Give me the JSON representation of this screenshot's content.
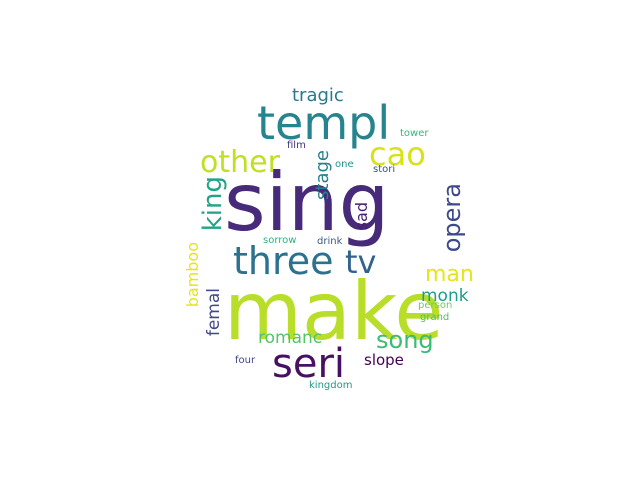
{
  "word_cloud": {
    "words": [
      {
        "text": "sing",
        "color": "#472a7a"
      },
      {
        "text": "make",
        "color": "#b8de29"
      },
      {
        "text": "templ",
        "color": "#25848e"
      },
      {
        "text": "three",
        "color": "#2c728e"
      },
      {
        "text": "seri",
        "color": "#471063"
      },
      {
        "text": "cao",
        "color": "#d8e219"
      },
      {
        "text": "other",
        "color": "#c2df23"
      },
      {
        "text": "tv",
        "color": "#33638d"
      },
      {
        "text": "song",
        "color": "#3bbb75"
      },
      {
        "text": "king",
        "color": "#20a386"
      },
      {
        "text": "opera",
        "color": "#3e4989"
      },
      {
        "text": "man",
        "color": "#e7e419"
      },
      {
        "text": "tragic",
        "color": "#2a788e"
      },
      {
        "text": "monk",
        "color": "#1e9c89"
      },
      {
        "text": "stage",
        "color": "#27808e"
      },
      {
        "text": "romanc",
        "color": "#52c569"
      },
      {
        "text": "femal",
        "color": "#3f4889"
      },
      {
        "text": "sad",
        "color": "#481f70"
      },
      {
        "text": "bamboo",
        "color": "#e5e419"
      },
      {
        "text": "slope",
        "color": "#440154"
      },
      {
        "text": "tower",
        "color": "#35b779"
      },
      {
        "text": "film",
        "color": "#46337e"
      },
      {
        "text": "one",
        "color": "#1f958b"
      },
      {
        "text": "stori",
        "color": "#3b528b"
      },
      {
        "text": "sorrow",
        "color": "#2db27d"
      },
      {
        "text": "drink",
        "color": "#365c8d"
      },
      {
        "text": "person",
        "color": "#6ccd5a"
      },
      {
        "text": "grand",
        "color": "#4ac16d"
      },
      {
        "text": "four",
        "color": "#3f4788"
      },
      {
        "text": "kingdom",
        "color": "#1f988b"
      }
    ]
  }
}
